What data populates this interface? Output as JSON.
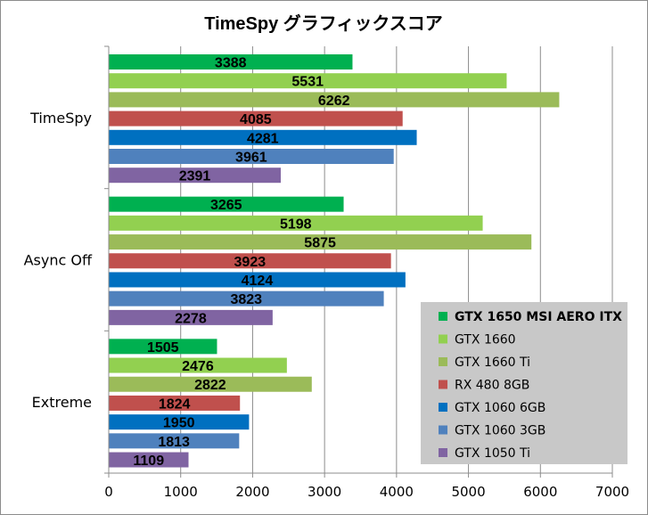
{
  "chart_data": {
    "type": "bar",
    "orientation": "horizontal",
    "title": "TimeSpy グラフィックスコア",
    "categories": [
      "TimeSpy",
      "Async Off",
      "Extreme"
    ],
    "xlim": [
      0,
      7000
    ],
    "xticks": [
      0,
      1000,
      2000,
      3000,
      4000,
      5000,
      6000,
      7000
    ],
    "grid": true,
    "legend_position": "right",
    "series": [
      {
        "name": "GTX 1650 MSI AERO ITX",
        "color": "#00b050",
        "values": [
          3388,
          3265,
          1505
        ]
      },
      {
        "name": "GTX 1660",
        "color": "#92d050",
        "values": [
          5531,
          5198,
          2476
        ]
      },
      {
        "name": "GTX 1660 Ti",
        "color": "#9bbb59",
        "values": [
          6262,
          5875,
          2822
        ]
      },
      {
        "name": "RX 480 8GB",
        "color": "#c0504d",
        "values": [
          4085,
          3923,
          1824
        ]
      },
      {
        "name": "GTX 1060 6GB",
        "color": "#0070c0",
        "values": [
          4281,
          4124,
          1950
        ]
      },
      {
        "name": "GTX 1060 3GB",
        "color": "#4f81bd",
        "values": [
          3961,
          3823,
          1813
        ]
      },
      {
        "name": "GTX 1050 Ti",
        "color": "#8064a2",
        "values": [
          2391,
          2278,
          1109
        ]
      }
    ]
  }
}
